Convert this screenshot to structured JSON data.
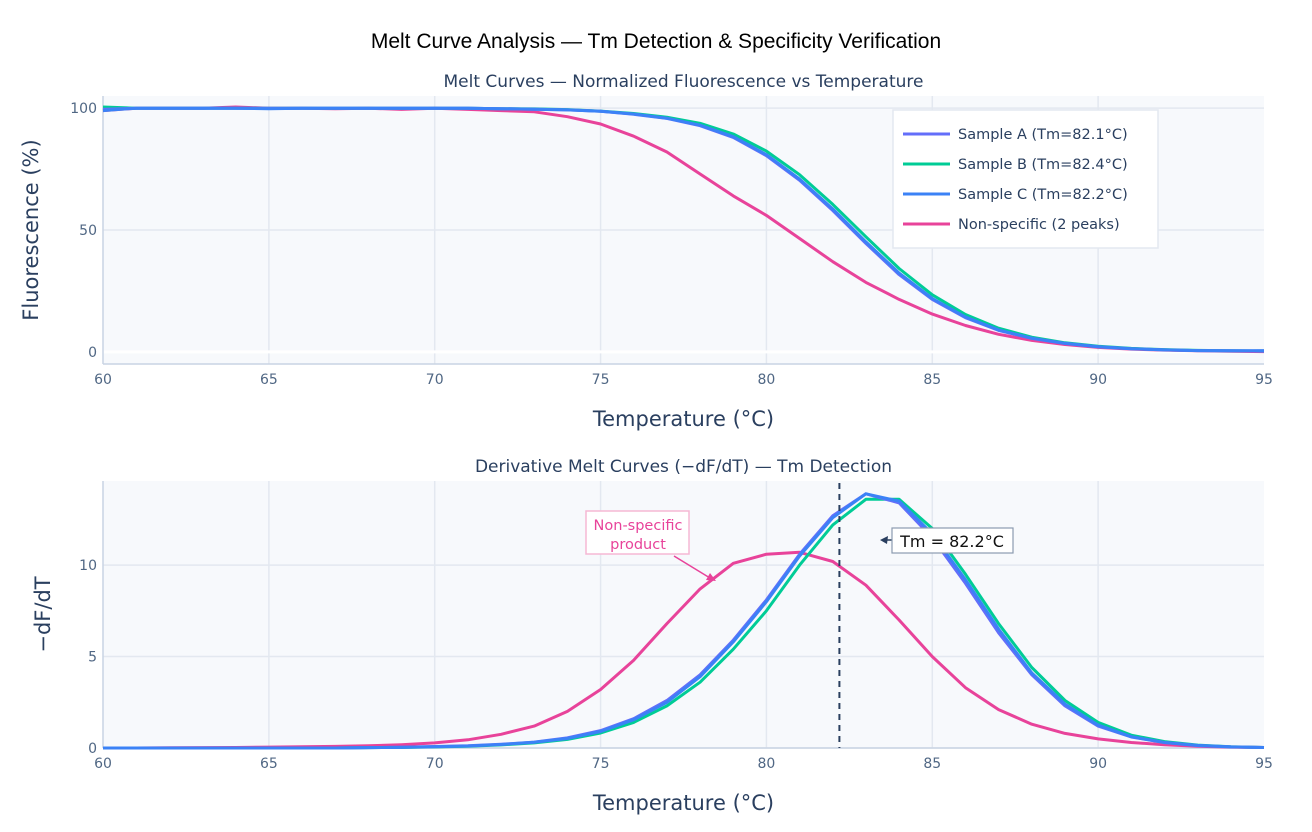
{
  "title": "Melt Curve Analysis — Tm Detection & Specificity Verification",
  "colors": {
    "sample_a": "#636efa",
    "sample_b": "#00cc96",
    "sample_c": "#3b82f6",
    "nonspecific": "#e8439a",
    "plot_bg": "#f7f9fc",
    "grid": "#e3e8f0",
    "text": "#2a3f5f"
  },
  "chart_data": [
    {
      "type": "line",
      "title": "Melt Curves — Normalized Fluorescence vs Temperature",
      "xlabel": "Temperature (°C)",
      "ylabel": "Fluorescence (%)",
      "xlim": [
        60,
        95
      ],
      "ylim": [
        -5,
        105
      ],
      "xticks": [
        "60",
        "65",
        "70",
        "75",
        "80",
        "85",
        "90",
        "95"
      ],
      "yticks": [
        "0",
        "50",
        "100"
      ],
      "grid": true,
      "legend_position": "top-right",
      "x": [
        60,
        61,
        62,
        63,
        64,
        65,
        66,
        67,
        68,
        69,
        70,
        71,
        72,
        73,
        74,
        75,
        76,
        77,
        78,
        79,
        80,
        81,
        82,
        83,
        84,
        85,
        86,
        87,
        88,
        89,
        90,
        91,
        92,
        93,
        94,
        95
      ],
      "series": [
        {
          "name": "Sample A (Tm=82.1°C)",
          "key": "sample_a",
          "values": [
            99.5,
            100,
            100,
            100,
            100,
            100,
            100,
            100,
            100,
            100,
            100,
            100,
            99.8,
            99.6,
            99.3,
            98.7,
            97.5,
            95.8,
            92.8,
            88.0,
            80.5,
            70.4,
            58.0,
            44.5,
            31.7,
            21.5,
            14.0,
            8.8,
            5.5,
            3.4,
            2.1,
            1.3,
            0.8,
            0.5,
            0.4,
            0.3
          ]
        },
        {
          "name": "Sample B (Tm=82.4°C)",
          "key": "sample_b",
          "values": [
            100.5,
            100,
            100,
            100,
            100,
            100,
            100,
            100,
            100,
            100,
            100,
            100,
            99.8,
            99.7,
            99.4,
            98.8,
            97.8,
            96.3,
            93.8,
            89.4,
            82.4,
            72.7,
            60.5,
            47.2,
            34.2,
            23.4,
            15.3,
            9.7,
            6.0,
            3.7,
            2.3,
            1.4,
            0.9,
            0.6,
            0.4,
            0.3
          ]
        },
        {
          "name": "Sample C (Tm=82.2°C)",
          "key": "sample_c",
          "values": [
            99.0,
            100,
            100,
            100,
            100,
            99.8,
            100,
            100,
            100,
            100,
            100,
            100,
            99.8,
            99.6,
            99.3,
            98.7,
            97.6,
            95.9,
            93.0,
            88.3,
            80.9,
            70.9,
            58.6,
            45.1,
            32.3,
            21.9,
            14.3,
            9.0,
            5.6,
            3.5,
            2.1,
            1.3,
            0.8,
            0.5,
            0.4,
            0.5
          ]
        },
        {
          "name": "Non-specific (2 peaks)",
          "key": "nonspecific",
          "values": [
            99.0,
            100,
            100,
            100,
            100.5,
            100,
            100,
            99.8,
            100,
            99.5,
            100,
            99.5,
            99.0,
            98.5,
            96.5,
            93.5,
            88.5,
            82.0,
            73.0,
            64.0,
            56.0,
            46.5,
            37.0,
            28.5,
            21.5,
            15.5,
            10.8,
            7.2,
            4.7,
            3.0,
            1.8,
            1.1,
            0.7,
            0.4,
            0.2,
            0.1
          ]
        }
      ]
    },
    {
      "type": "line",
      "title": "Derivative Melt Curves (−dF/dT) — Tm Detection",
      "xlabel": "Temperature (°C)",
      "ylabel": "−dF/dT",
      "xlim": [
        60,
        95
      ],
      "ylim": [
        0,
        14.6
      ],
      "xticks": [
        "60",
        "65",
        "70",
        "75",
        "80",
        "85",
        "90",
        "95"
      ],
      "yticks": [
        "0",
        "5",
        "10"
      ],
      "grid": true,
      "x": [
        60,
        61,
        62,
        63,
        64,
        65,
        66,
        67,
        68,
        69,
        70,
        71,
        72,
        73,
        74,
        75,
        76,
        77,
        78,
        79,
        80,
        81,
        82,
        83,
        84,
        85,
        86,
        87,
        88,
        89,
        90,
        91,
        92,
        93,
        94,
        95
      ],
      "series": [
        {
          "name": "Sample A (Tm=82.1°C)",
          "key": "sample_a",
          "values": [
            0,
            0,
            0,
            0,
            0,
            0,
            0,
            0,
            0.02,
            0.04,
            0.08,
            0.12,
            0.2,
            0.32,
            0.55,
            0.95,
            1.6,
            2.6,
            4.0,
            5.9,
            8.1,
            10.6,
            12.7,
            13.9,
            13.4,
            11.5,
            9.0,
            6.3,
            4.0,
            2.3,
            1.2,
            0.6,
            0.3,
            0.13,
            0.06,
            0.03
          ]
        },
        {
          "name": "Sample B (Tm=82.4°C)",
          "key": "sample_b",
          "values": [
            0,
            0,
            0,
            0,
            0,
            0,
            0,
            0,
            0.02,
            0.03,
            0.06,
            0.1,
            0.17,
            0.28,
            0.47,
            0.82,
            1.4,
            2.3,
            3.6,
            5.4,
            7.5,
            10.0,
            12.2,
            13.6,
            13.6,
            12.0,
            9.5,
            6.8,
            4.4,
            2.6,
            1.4,
            0.7,
            0.35,
            0.16,
            0.07,
            0.03
          ]
        },
        {
          "name": "Sample C (Tm=82.2°C)",
          "key": "sample_c",
          "values": [
            0,
            0,
            0,
            0,
            0,
            0,
            0,
            0,
            0.02,
            0.04,
            0.07,
            0.11,
            0.19,
            0.31,
            0.52,
            0.9,
            1.55,
            2.5,
            3.9,
            5.8,
            8.0,
            10.5,
            12.6,
            13.9,
            13.5,
            11.7,
            9.2,
            6.5,
            4.1,
            2.4,
            1.25,
            0.62,
            0.3,
            0.14,
            0.06,
            0.03
          ]
        },
        {
          "name": "Non-specific (2 peaks)",
          "key": "nonspecific",
          "values": [
            0,
            0,
            0.01,
            0.02,
            0.03,
            0.05,
            0.07,
            0.09,
            0.12,
            0.18,
            0.28,
            0.45,
            0.75,
            1.2,
            2.0,
            3.2,
            4.8,
            6.8,
            8.7,
            10.1,
            10.6,
            10.7,
            10.2,
            8.9,
            7.0,
            5.0,
            3.3,
            2.1,
            1.3,
            0.8,
            0.5,
            0.3,
            0.18,
            0.1,
            0.05,
            0.03
          ]
        }
      ],
      "annotations": [
        {
          "text": "Tm = 82.2°C",
          "x": 82.2,
          "type": "vertical-dashed-line"
        },
        {
          "text_lines": [
            "Non-specific",
            "product"
          ],
          "x": 78.8,
          "y": 9.2,
          "type": "arrow-callout"
        }
      ]
    }
  ]
}
